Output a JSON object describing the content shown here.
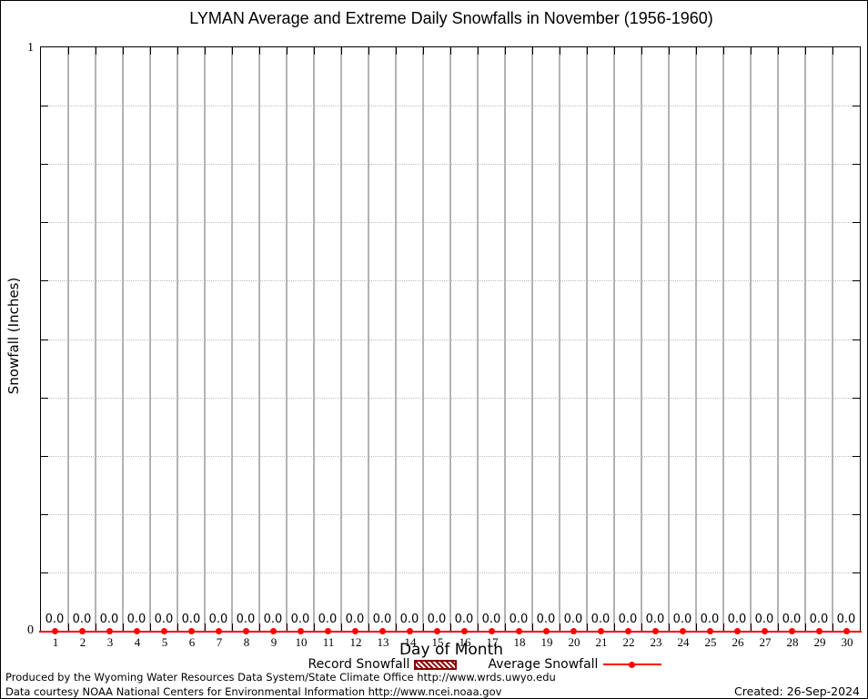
{
  "title": "LYMAN Average and Extreme Daily Snowfalls in November (1956-1960)",
  "y_axis": {
    "label": "Snowfall (Inches)",
    "max_label": "1",
    "min_label": "0"
  },
  "x_axis": {
    "label": "Day of Month"
  },
  "chart_data": {
    "type": "line",
    "title": "LYMAN Average and Extreme Daily Snowfalls in November (1956-1960)",
    "xlabel": "Day of Month",
    "ylabel": "Snowfall (Inches)",
    "ylim": [
      0,
      1
    ],
    "xlim": [
      0.5,
      30.5
    ],
    "grid": {
      "vertical": "solid gray at day boundaries",
      "horizontal": "dotted every 0.1"
    },
    "legend_position": "bottom-center",
    "x": [
      1,
      2,
      3,
      4,
      5,
      6,
      7,
      8,
      9,
      10,
      11,
      12,
      13,
      14,
      15,
      16,
      17,
      18,
      19,
      20,
      21,
      22,
      23,
      24,
      25,
      26,
      27,
      28,
      29,
      30
    ],
    "series": [
      {
        "name": "Record Snowfall",
        "marker": "hatched-box",
        "color": "#8b0000",
        "values": [
          0.0,
          0.0,
          0.0,
          0.0,
          0.0,
          0.0,
          0.0,
          0.0,
          0.0,
          0.0,
          0.0,
          0.0,
          0.0,
          0.0,
          0.0,
          0.0,
          0.0,
          0.0,
          0.0,
          0.0,
          0.0,
          0.0,
          0.0,
          0.0,
          0.0,
          0.0,
          0.0,
          0.0,
          0.0,
          0.0
        ]
      },
      {
        "name": "Average Snowfall",
        "marker": "line-with-points",
        "color": "#ff0000",
        "values": [
          0.0,
          0.0,
          0.0,
          0.0,
          0.0,
          0.0,
          0.0,
          0.0,
          0.0,
          0.0,
          0.0,
          0.0,
          0.0,
          0.0,
          0.0,
          0.0,
          0.0,
          0.0,
          0.0,
          0.0,
          0.0,
          0.0,
          0.0,
          0.0,
          0.0,
          0.0,
          0.0,
          0.0,
          0.0,
          0.0
        ]
      }
    ],
    "point_label_decimals": 1
  },
  "legend": {
    "record_label": "Record Snowfall",
    "average_label": "Average Snowfall"
  },
  "footer": {
    "produced_by": "Produced by the Wyoming Water Resources Data System/State Climate Office http://www.wrds.uwyo.edu",
    "data_courtesy": "Data courtesy NOAA National Centers for Environmental Information http://www.ncei.noaa.gov",
    "created": "Created: 26-Sep-2024"
  },
  "colors": {
    "average_line": "#ff0000",
    "record_fill": "#8b0000",
    "grid_vertical": "#b3b3b3",
    "grid_horizontal": "#bdbdbd",
    "axis": "#000000"
  }
}
